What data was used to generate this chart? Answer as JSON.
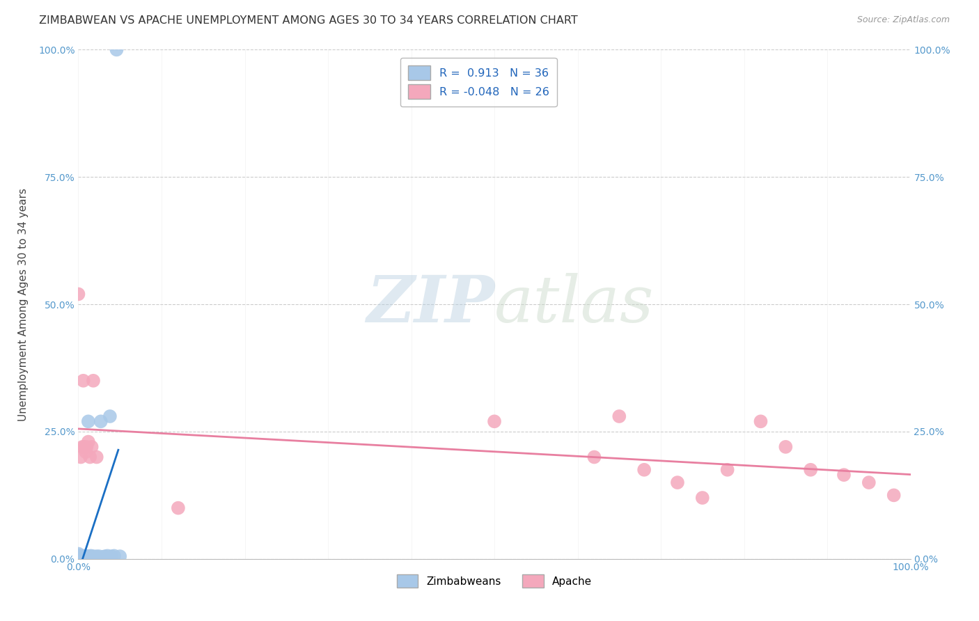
{
  "title": "ZIMBABWEAN VS APACHE UNEMPLOYMENT AMONG AGES 30 TO 34 YEARS CORRELATION CHART",
  "source": "Source: ZipAtlas.com",
  "ylabel": "Unemployment Among Ages 30 to 34 years",
  "xlim": [
    0.0,
    1.0
  ],
  "ylim": [
    0.0,
    1.0
  ],
  "x_left_label": "0.0%",
  "x_right_label": "100.0%",
  "y_bottom_label": "0.0%",
  "y_top_label": "100.0%",
  "ytick_positions": [
    0.0,
    0.25,
    0.5,
    0.75,
    1.0
  ],
  "ytick_labels": [
    "0.0%",
    "25.0%",
    "50.0%",
    "75.0%",
    "100.0%"
  ],
  "xtick_positions": [
    0.0,
    0.1,
    0.2,
    0.3,
    0.4,
    0.5,
    0.6,
    0.7,
    0.8,
    0.9,
    1.0
  ],
  "zimbabwean_R": 0.913,
  "zimbabwean_N": 36,
  "apache_R": -0.048,
  "apache_N": 26,
  "zimbabwean_color": "#a8c8e8",
  "apache_color": "#f4a8bc",
  "trendline_zimbabwean_color": "#1a6fc4",
  "trendline_apache_color": "#e87fa0",
  "watermark_color": "#c8d8ea",
  "background_color": "#ffffff",
  "grid_color": "#cccccc",
  "tick_color": "#5599cc",
  "zimbabwean_x": [
    0.0,
    0.0,
    0.0,
    0.0,
    0.0,
    0.0,
    0.003,
    0.004,
    0.005,
    0.005,
    0.006,
    0.006,
    0.007,
    0.007,
    0.008,
    0.009,
    0.01,
    0.01,
    0.012,
    0.013,
    0.015,
    0.015,
    0.017,
    0.018,
    0.02,
    0.022,
    0.025,
    0.027,
    0.03,
    0.032,
    0.035,
    0.038,
    0.04,
    0.043,
    0.046,
    0.05
  ],
  "zimbabwean_y": [
    0.0,
    0.002,
    0.003,
    0.005,
    0.007,
    0.01,
    0.003,
    0.005,
    0.003,
    0.005,
    0.003,
    0.005,
    0.003,
    0.006,
    0.003,
    0.005,
    0.003,
    0.005,
    0.27,
    0.005,
    0.004,
    0.006,
    0.004,
    0.005,
    0.004,
    0.005,
    0.005,
    0.27,
    0.004,
    0.005,
    0.006,
    0.28,
    0.005,
    0.006,
    1.0,
    0.005
  ],
  "apache_x": [
    0.0,
    0.003,
    0.005,
    0.006,
    0.007,
    0.009,
    0.01,
    0.012,
    0.014,
    0.016,
    0.018,
    0.022,
    0.12,
    0.5,
    0.62,
    0.65,
    0.68,
    0.72,
    0.75,
    0.78,
    0.82,
    0.85,
    0.88,
    0.92,
    0.95,
    0.98
  ],
  "apache_y": [
    0.52,
    0.2,
    0.22,
    0.35,
    0.22,
    0.21,
    0.22,
    0.23,
    0.2,
    0.22,
    0.35,
    0.2,
    0.1,
    0.27,
    0.2,
    0.28,
    0.175,
    0.15,
    0.12,
    0.175,
    0.27,
    0.22,
    0.175,
    0.165,
    0.15,
    0.125
  ]
}
